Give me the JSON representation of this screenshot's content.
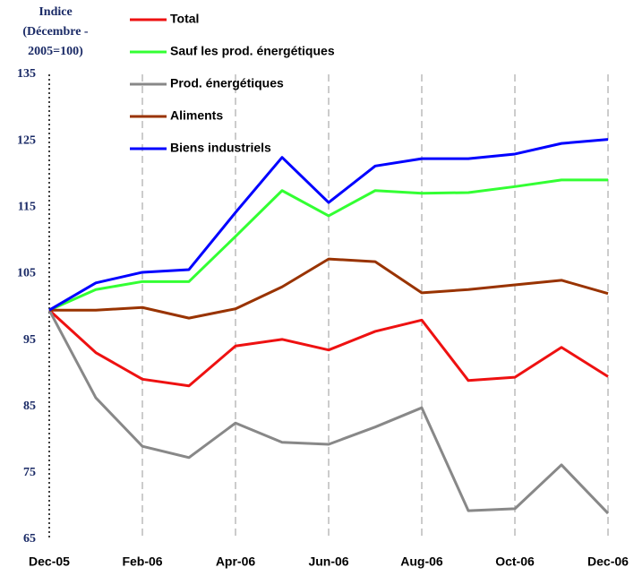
{
  "chart_data": {
    "type": "line",
    "ylabel": [
      "Indice",
      "(Décembre -",
      "2005=100)"
    ],
    "categories": [
      "Dec-05",
      null,
      "Feb-06",
      null,
      "Apr-06",
      null,
      "Jun-06",
      null,
      "Aug-06",
      null,
      "Oct-06",
      null,
      "Dec-06"
    ],
    "ylim": [
      65,
      135
    ],
    "yticks": [
      65,
      75,
      85,
      95,
      105,
      115,
      125,
      135
    ],
    "grid": true,
    "legend": "top",
    "series": [
      {
        "name": "Total",
        "color": "#ee1111",
        "values": [
          99.5,
          93.1,
          89.1,
          88.1,
          94.1,
          95.1,
          93.5,
          96.3,
          98.0,
          88.9,
          89.4,
          93.9,
          89.5
        ]
      },
      {
        "name": "Sauf les prod. énergétiques",
        "color": "#33ff33",
        "values": [
          99.5,
          102.6,
          103.8,
          103.8,
          110.6,
          117.5,
          113.7,
          117.5,
          117.1,
          117.2,
          118.1,
          119.1,
          119.1
        ]
      },
      {
        "name": "Prod. énergétiques",
        "color": "#888888",
        "values": [
          99.5,
          86.3,
          79.0,
          77.3,
          82.5,
          79.6,
          79.3,
          81.9,
          84.8,
          69.3,
          69.6,
          76.2,
          68.9
        ]
      },
      {
        "name": "Aliments",
        "color": "#993300",
        "values": [
          99.5,
          99.5,
          99.9,
          98.3,
          99.7,
          103.0,
          107.2,
          106.8,
          102.1,
          102.6,
          103.3,
          104.0,
          102.0
        ]
      },
      {
        "name": "Biens industriels",
        "color": "#0000ff",
        "values": [
          99.5,
          103.6,
          105.2,
          105.6,
          114.2,
          122.5,
          115.7,
          121.2,
          122.3,
          122.3,
          123.0,
          124.6,
          125.2
        ]
      }
    ]
  }
}
